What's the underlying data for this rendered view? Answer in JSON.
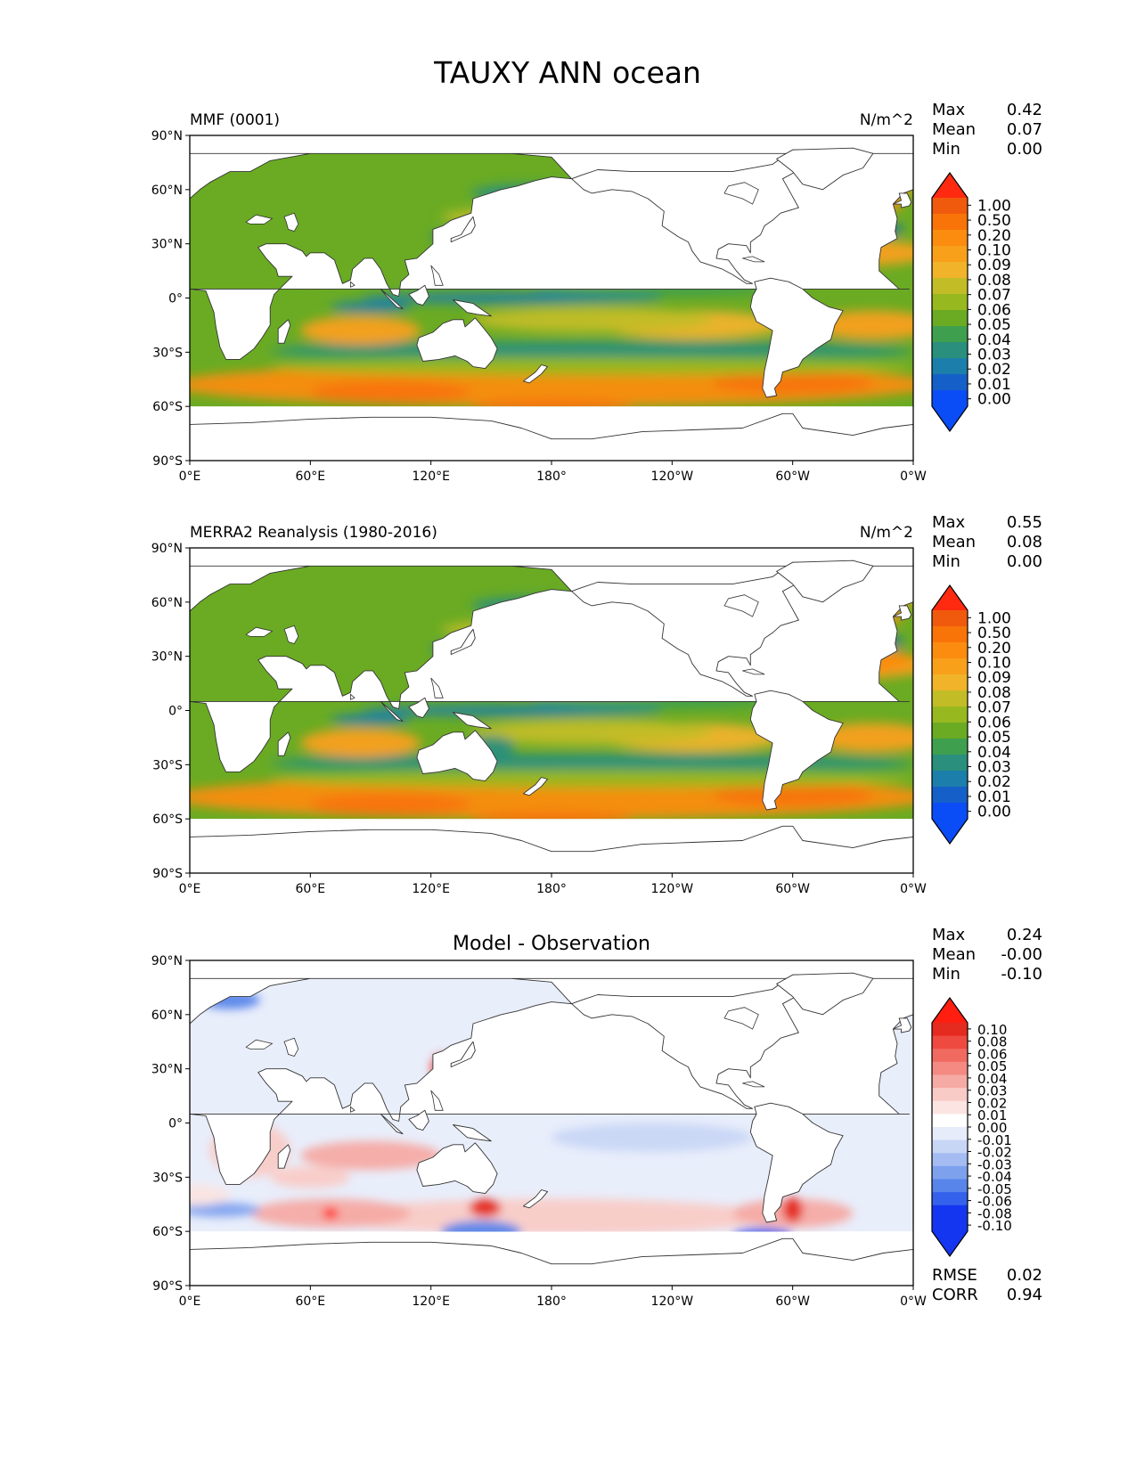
{
  "figure": {
    "title": "TAUXY ANN ocean"
  },
  "colors": {
    "land": "#ffffff",
    "coast": "#333333",
    "seq_scale": [
      "#0a4cf6",
      "#1560c8",
      "#1c7eaa",
      "#2a8f7c",
      "#3ea04e",
      "#6aab23",
      "#98b81f",
      "#c2bd27",
      "#f0b32a",
      "#f9a01b",
      "#fb8c0f",
      "#f87408",
      "#f05a0d",
      "#ff2a10"
    ],
    "div_scale": [
      "#1536f0",
      "#3562ec",
      "#5885ea",
      "#7ea1ee",
      "#a4bcf2",
      "#c8d6f6",
      "#e6ecfa",
      "#ffffff",
      "#fbe4e2",
      "#f9cbc6",
      "#f6aaa4",
      "#f48a82",
      "#f16a60",
      "#ee4a3f",
      "#e52a20",
      "#ff1e10"
    ]
  },
  "panels": [
    {
      "id": "model",
      "left_label": "MMF (0001)",
      "right_label": "N/m^2",
      "center_label": "",
      "stats": [
        {
          "label": "Max",
          "value": "0.42"
        },
        {
          "label": "Mean",
          "value": "0.07"
        },
        {
          "label": "Min",
          "value": "0.00"
        }
      ],
      "colorbar": {
        "type": "sequential",
        "ticks": [
          "1.00",
          "0.50",
          "0.20",
          "0.10",
          "0.09",
          "0.08",
          "0.07",
          "0.06",
          "0.05",
          "0.04",
          "0.03",
          "0.02",
          "0.01",
          "0.00"
        ]
      },
      "extra_stats": []
    },
    {
      "id": "obs",
      "left_label": "MERRA2 Reanalysis (1980-2016)",
      "right_label": "N/m^2",
      "center_label": "",
      "stats": [
        {
          "label": "Max",
          "value": "0.55"
        },
        {
          "label": "Mean",
          "value": "0.08"
        },
        {
          "label": "Min",
          "value": "0.00"
        }
      ],
      "colorbar": {
        "type": "sequential",
        "ticks": [
          "1.00",
          "0.50",
          "0.20",
          "0.10",
          "0.09",
          "0.08",
          "0.07",
          "0.06",
          "0.05",
          "0.04",
          "0.03",
          "0.02",
          "0.01",
          "0.00"
        ]
      },
      "extra_stats": []
    },
    {
      "id": "diff",
      "left_label": "",
      "right_label": "",
      "center_label": "Model - Observation",
      "stats": [
        {
          "label": "Max",
          "value": "0.24"
        },
        {
          "label": "Mean",
          "value": "-0.00"
        },
        {
          "label": "Min",
          "value": "-0.10"
        }
      ],
      "colorbar": {
        "type": "diverging",
        "ticks": [
          "0.10",
          "0.08",
          "0.06",
          "0.05",
          "0.04",
          "0.03",
          "0.02",
          "0.01",
          "0.00",
          "-0.01",
          "-0.02",
          "-0.03",
          "-0.04",
          "-0.05",
          "-0.06",
          "-0.08",
          "-0.10"
        ]
      },
      "extra_stats": [
        {
          "label": "RMSE",
          "value": "0.02"
        },
        {
          "label": "CORR",
          "value": "0.94"
        }
      ]
    }
  ],
  "chart_data": {
    "type": "heatmap",
    "title": "TAUXY ANN ocean",
    "variable": "TAUXY",
    "units": "N/m^2",
    "x_ticks": [
      "0°E",
      "60°E",
      "120°E",
      "180°",
      "120°W",
      "60°W",
      "0°W"
    ],
    "y_ticks": [
      "90°N",
      "60°N",
      "30°N",
      "0°",
      "30°S",
      "60°S",
      "90°S"
    ],
    "xlim": [
      0,
      360
    ],
    "ylim": [
      -90,
      90
    ],
    "maps": [
      {
        "name": "MMF (0001)",
        "max": 0.42,
        "mean": 0.07,
        "min": 0.0
      },
      {
        "name": "MERRA2 Reanalysis (1980-2016)",
        "max": 0.55,
        "mean": 0.08,
        "min": 0.0
      },
      {
        "name": "Model - Observation",
        "max": 0.24,
        "mean": -0.0,
        "min": -0.1,
        "rmse": 0.02,
        "corr": 0.94
      }
    ]
  }
}
